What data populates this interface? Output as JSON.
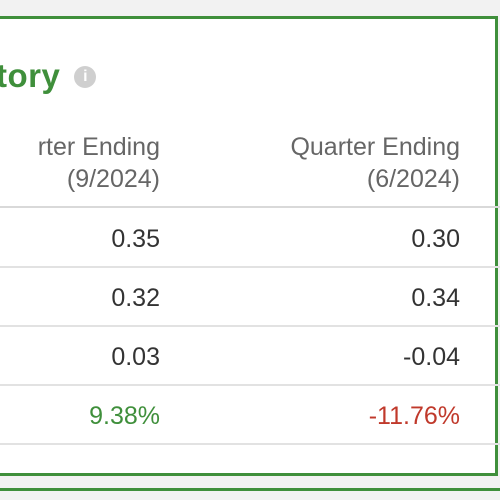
{
  "section": {
    "title": "tory",
    "info_icon": "info-icon"
  },
  "columns": [
    {
      "line1": "rter Ending",
      "line2": "(9/2024)"
    },
    {
      "line1": "Quarter Ending",
      "line2": "(6/2024)"
    }
  ],
  "rows": [
    {
      "values": [
        "0.35",
        "0.30"
      ]
    },
    {
      "values": [
        "0.32",
        "0.34"
      ]
    },
    {
      "values": [
        "0.03",
        "-0.04"
      ]
    },
    {
      "values": [
        "9.38%",
        "-11.76%"
      ]
    }
  ],
  "colors": {
    "accent": "#3f8f3b",
    "positive": "#3f8f3b",
    "negative": "#c0392b"
  }
}
